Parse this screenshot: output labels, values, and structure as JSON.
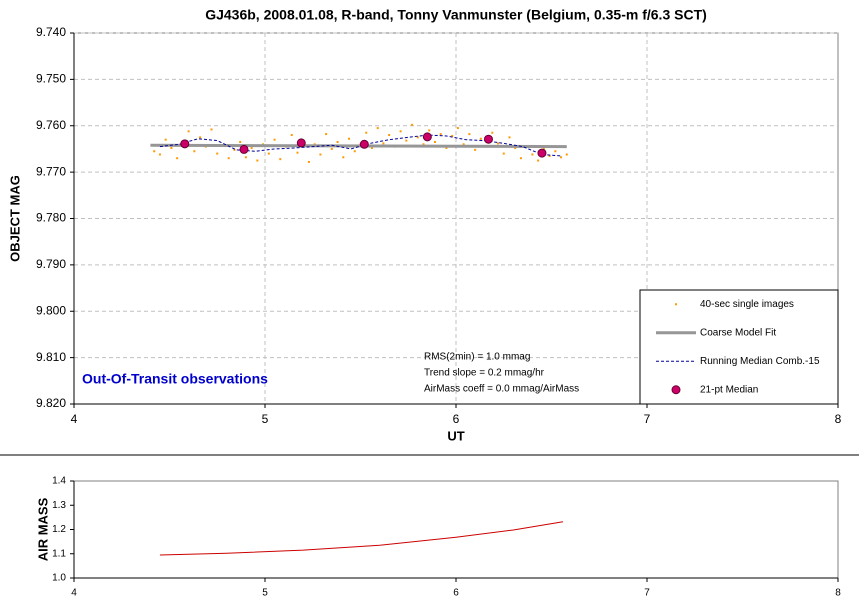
{
  "chart_data": [
    {
      "type": "line",
      "title": "GJ436b, 2008.01.08, R-band, Tonny Vanmunster (Belgium, 0.35-m f/6.3 SCT)",
      "xlabel": "UT",
      "ylabel": "OBJECT MAG",
      "xlim": [
        4,
        8
      ],
      "xticks": [
        4,
        5,
        6,
        7,
        8
      ],
      "ylim": [
        9.74,
        9.82
      ],
      "y_inverted": true,
      "yticks": [
        {
          "value": 9.74,
          "label": "9.740"
        },
        {
          "value": 9.75,
          "label": "9.750"
        },
        {
          "value": 9.76,
          "label": "9.760"
        },
        {
          "value": 9.77,
          "label": "9.770"
        },
        {
          "value": 9.78,
          "label": "9.780"
        },
        {
          "value": 9.79,
          "label": "9.790"
        },
        {
          "value": 9.8,
          "label": "9.800"
        },
        {
          "value": 9.81,
          "label": "9.810"
        },
        {
          "value": 9.82,
          "label": "9.820"
        }
      ],
      "grid": true,
      "legend": "lower right",
      "annotations": [
        "RMS(2min) = 1.0 mmag",
        "Trend slope = 0.2 mmag/hr",
        "AirMass coeff = 0.0 mmag/AirMass",
        "Out-Of-Transit observations"
      ],
      "series": [
        {
          "name": "40-sec single images",
          "type": "scatter",
          "color": "#ff9900",
          "x": [
            4.42,
            4.45,
            4.48,
            4.51,
            4.54,
            4.57,
            4.6,
            4.63,
            4.66,
            4.69,
            4.72,
            4.75,
            4.78,
            4.81,
            4.84,
            4.87,
            4.9,
            4.93,
            4.96,
            4.99,
            5.02,
            5.05,
            5.08,
            5.11,
            5.14,
            5.17,
            5.2,
            5.23,
            5.26,
            5.29,
            5.32,
            5.35,
            5.38,
            5.41,
            5.44,
            5.47,
            5.5,
            5.53,
            5.56,
            5.59,
            5.62,
            5.65,
            5.68,
            5.71,
            5.74,
            5.77,
            5.8,
            5.83,
            5.86,
            5.89,
            5.92,
            5.95,
            5.98,
            6.01,
            6.04,
            6.07,
            6.1,
            6.13,
            6.16,
            6.19,
            6.22,
            6.25,
            6.28,
            6.31,
            6.34,
            6.37,
            6.4,
            6.43,
            6.46,
            6.49,
            6.52,
            6.55,
            6.58
          ],
          "values": [
            9.7655,
            9.7662,
            9.763,
            9.7648,
            9.767,
            9.7638,
            9.7612,
            9.7655,
            9.7625,
            9.7645,
            9.7608,
            9.766,
            9.7642,
            9.767,
            9.7652,
            9.7635,
            9.7668,
            9.7648,
            9.7675,
            9.764,
            9.766,
            9.763,
            9.7672,
            9.7645,
            9.762,
            9.7658,
            9.7632,
            9.7678,
            9.764,
            9.7662,
            9.7618,
            9.765,
            9.7635,
            9.7668,
            9.7628,
            9.7655,
            9.764,
            9.7615,
            9.7648,
            9.7605,
            9.7638,
            9.762,
            9.7645,
            9.7612,
            9.7632,
            9.7598,
            9.7625,
            9.764,
            9.761,
            9.7635,
            9.7618,
            9.7648,
            9.7622,
            9.7605,
            9.764,
            9.7618,
            9.7652,
            9.7628,
            9.7645,
            9.7615,
            9.7638,
            9.766,
            9.7625,
            9.7648,
            9.767,
            9.7645,
            9.7662,
            9.7675,
            9.765,
            9.7665,
            9.7655,
            9.7668,
            9.7662
          ]
        },
        {
          "name": "Coarse Model Fit",
          "type": "line",
          "color": "#969696",
          "width": 3,
          "x": [
            4.4,
            6.58
          ],
          "values": [
            9.7642,
            9.7645
          ]
        },
        {
          "name": "Running Median Comb.-15",
          "type": "line",
          "color": "#000099",
          "width": 1,
          "dashed": true,
          "x": [
            4.45,
            4.55,
            4.65,
            4.75,
            4.85,
            4.95,
            5.05,
            5.15,
            5.25,
            5.35,
            5.45,
            5.55,
            5.65,
            5.75,
            5.85,
            5.95,
            6.05,
            6.15,
            6.25,
            6.35,
            6.45,
            6.55
          ],
          "values": [
            9.7645,
            9.764,
            9.7628,
            9.7632,
            9.7652,
            9.7655,
            9.765,
            9.7648,
            9.7645,
            9.7642,
            9.765,
            9.7638,
            9.763,
            9.7625,
            9.762,
            9.7622,
            9.763,
            9.7632,
            9.7638,
            9.7645,
            9.7662,
            9.7665
          ]
        },
        {
          "name": "21-pt Median",
          "type": "scatter",
          "color": "#cc0066",
          "big": true,
          "x": [
            4.58,
            4.89,
            5.19,
            5.52,
            5.85,
            6.17,
            6.45
          ],
          "values": [
            9.7639,
            9.7651,
            9.7637,
            9.764,
            9.7624,
            9.7629,
            9.7659
          ]
        }
      ]
    },
    {
      "type": "line",
      "ylabel": "AIR MASS",
      "xlim": [
        4,
        8
      ],
      "xticks": [
        4,
        5,
        6,
        7,
        8
      ],
      "ylim": [
        1.0,
        1.4
      ],
      "y_inverted": false,
      "yticks": [
        {
          "value": 1.0,
          "label": "1.0"
        },
        {
          "value": 1.1,
          "label": "1.1"
        },
        {
          "value": 1.2,
          "label": "1.2"
        },
        {
          "value": 1.3,
          "label": "1.3"
        },
        {
          "value": 1.4,
          "label": "1.4"
        }
      ],
      "grid": false,
      "series": [
        {
          "type": "line",
          "color": "#cc0000",
          "width": 1,
          "x": [
            4.45,
            4.8,
            5.2,
            5.6,
            6.0,
            6.3,
            6.56
          ],
          "values": [
            1.095,
            1.102,
            1.115,
            1.135,
            1.168,
            1.198,
            1.232
          ]
        }
      ]
    }
  ]
}
